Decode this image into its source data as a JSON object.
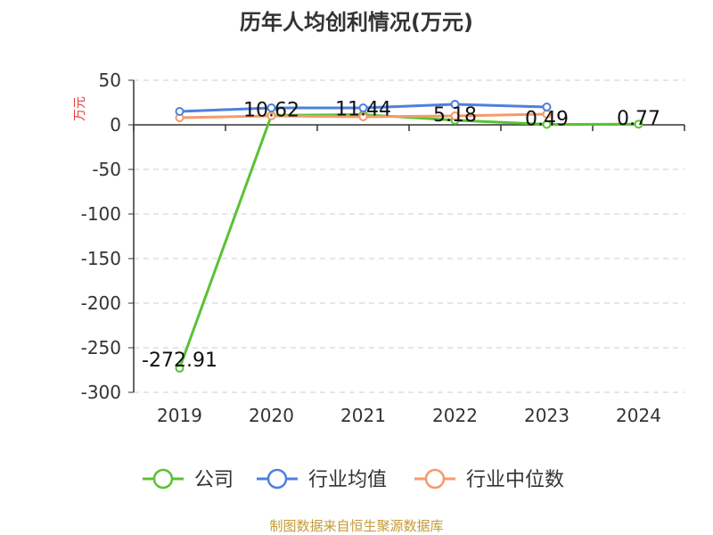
{
  "chart_data": {
    "type": "line",
    "title": "历年人均创利情况(万元)",
    "ylabel": "万元",
    "categories": [
      "2019",
      "2020",
      "2021",
      "2022",
      "2023",
      "2024"
    ],
    "ylim": [
      -300,
      50
    ],
    "yticks": [
      50,
      0,
      -50,
      -100,
      -150,
      -200,
      -250,
      -300
    ],
    "grid": true,
    "legend_position": "bottom",
    "series": [
      {
        "name": "公司",
        "color": "#5ac233",
        "values": [
          -272.91,
          10.62,
          11.44,
          5.18,
          0.49,
          0.77
        ],
        "labels": [
          "-272.91",
          "10.62",
          "11.44",
          "5.18",
          "0.49",
          "0.77"
        ]
      },
      {
        "name": "行业均值",
        "color": "#4f7fde",
        "values": [
          15,
          19,
          19,
          23,
          20,
          null
        ]
      },
      {
        "name": "行业中位数",
        "color": "#f59a6a",
        "values": [
          8,
          10,
          9,
          10,
          12,
          null
        ]
      }
    ]
  },
  "footer": {
    "source": "制图数据来自恒生聚源数据库"
  }
}
